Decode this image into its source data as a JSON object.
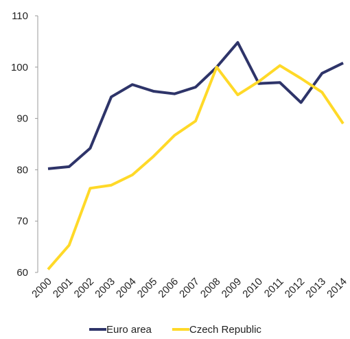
{
  "chart_data": {
    "type": "line",
    "categories": [
      "2000",
      "2001",
      "2002",
      "2003",
      "2004",
      "2005",
      "2006",
      "2007",
      "2008",
      "2009",
      "2010",
      "2011",
      "2012",
      "2013",
      "2014"
    ],
    "series": [
      {
        "name": "Euro area",
        "color": "#2e3469",
        "values": [
          80.2,
          80.6,
          84.2,
          94.2,
          96.6,
          95.3,
          94.8,
          96.1,
          100,
          104.8,
          96.8,
          97.0,
          93.1,
          98.8,
          100.8
        ]
      },
      {
        "name": "Czech Republic",
        "color": "#ffd928",
        "values": [
          60.6,
          65.3,
          76.4,
          77.0,
          79.0,
          82.6,
          86.7,
          89.5,
          100,
          94.6,
          97.2,
          100.3,
          97.8,
          95.1,
          89.0
        ]
      }
    ],
    "ylim": [
      60,
      110
    ],
    "yticks": [
      60,
      70,
      80,
      90,
      100,
      110
    ],
    "grid": false,
    "legend": "bottom"
  }
}
